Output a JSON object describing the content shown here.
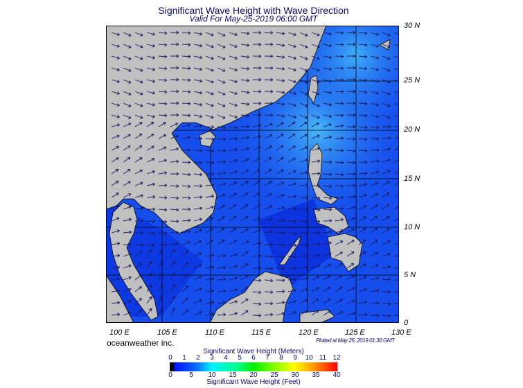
{
  "title": "Significant Wave Height with Wave Direction",
  "subtitle": "Valid For May-25-2019 06:00 GMT",
  "latitude_labels": [
    "30 N",
    "25 N",
    "20 N",
    "15 N",
    "10 N",
    "5 N",
    "0"
  ],
  "longitude_labels": [
    "100 E",
    "105 E",
    "110 E",
    "115 E",
    "120 E",
    "125 E",
    "130 E"
  ],
  "credit": "oceanweather inc.",
  "plotted_at": "Plotted at May 25, 2019 01:30 GMT",
  "colorbar": {
    "meters_label": "Significant Wave Height (Meters)",
    "feet_label": "Significant Wave Height (Feet)",
    "meters_ticks": [
      "0",
      "1",
      "2",
      "3",
      "4",
      "5",
      "6",
      "7",
      "8",
      "9",
      "10",
      "11",
      "12"
    ],
    "feet_ticks": [
      "0",
      "5",
      "10",
      "15",
      "20",
      "25",
      "30",
      "35",
      "40"
    ]
  },
  "colors": {
    "land": "#c0c0c0",
    "ocean_low": "#0a2ee0",
    "ocean_mid": "#1a6ef0",
    "ocean_high": "#4ab8f8",
    "arrows": "#1a1a60"
  }
}
